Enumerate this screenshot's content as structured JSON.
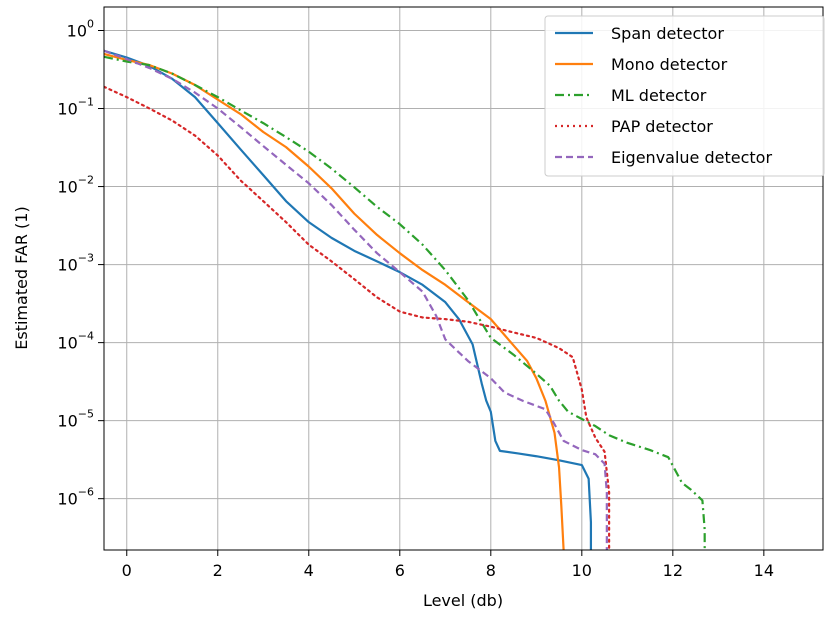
{
  "chart_data": {
    "type": "line",
    "title": "",
    "xlabel": "Level (db)",
    "ylabel": "Estimated FAR (1)",
    "xscale": "linear",
    "yscale": "log",
    "xlim": [
      -0.5,
      15.3
    ],
    "ylim": [
      2.2e-07,
      2.0
    ],
    "grid": true,
    "legend_position": "top-right",
    "x_ticks": [
      0,
      2,
      4,
      6,
      8,
      10,
      12,
      14
    ],
    "x_tick_labels": [
      "0",
      "2",
      "4",
      "6",
      "8",
      "10",
      "12",
      "14"
    ],
    "y_ticks": [
      1e-06,
      1e-05,
      0.0001,
      0.001,
      0.01,
      0.1,
      1
    ],
    "y_tick_labels": [
      {
        "base": "10",
        "exp": "−6"
      },
      {
        "base": "10",
        "exp": "−5"
      },
      {
        "base": "10",
        "exp": "−4"
      },
      {
        "base": "10",
        "exp": "−3"
      },
      {
        "base": "10",
        "exp": "−2"
      },
      {
        "base": "10",
        "exp": "−1"
      },
      {
        "base": "10",
        "exp": "0"
      }
    ],
    "series": [
      {
        "name": "Span detector",
        "color": "#1f77b4",
        "style": "solid",
        "points": [
          [
            -0.5,
            0.55
          ],
          [
            0,
            0.45
          ],
          [
            0.5,
            0.35
          ],
          [
            1,
            0.24
          ],
          [
            1.5,
            0.14
          ],
          [
            2,
            0.065
          ],
          [
            2.5,
            0.03
          ],
          [
            3,
            0.014
          ],
          [
            3.5,
            0.0065
          ],
          [
            4,
            0.0035
          ],
          [
            4.5,
            0.0022
          ],
          [
            5,
            0.0015
          ],
          [
            5.5,
            0.0011
          ],
          [
            6,
            0.0008
          ],
          [
            6.5,
            0.00055
          ],
          [
            7,
            0.00033
          ],
          [
            7.3,
            0.0002
          ],
          [
            7.6,
            9.5e-05
          ],
          [
            7.8,
            3e-05
          ],
          [
            7.9,
            1.8e-05
          ],
          [
            8.0,
            1.3e-05
          ],
          [
            8.1,
            5.5e-06
          ],
          [
            8.2,
            4.1e-06
          ],
          [
            8.6,
            3.8e-06
          ],
          [
            9,
            3.5e-06
          ],
          [
            9.5,
            3.1e-06
          ],
          [
            10,
            2.7e-06
          ],
          [
            10.15,
            1.8e-06
          ],
          [
            10.2,
            5e-07
          ],
          [
            10.2,
            2.2e-07
          ]
        ]
      },
      {
        "name": "Mono detector",
        "color": "#ff7f0e",
        "style": "solid",
        "points": [
          [
            -0.5,
            0.5
          ],
          [
            0,
            0.42
          ],
          [
            0.5,
            0.36
          ],
          [
            1,
            0.28
          ],
          [
            1.5,
            0.2
          ],
          [
            2,
            0.13
          ],
          [
            2.5,
            0.085
          ],
          [
            3,
            0.05
          ],
          [
            3.5,
            0.032
          ],
          [
            4,
            0.018
          ],
          [
            4.5,
            0.0095
          ],
          [
            5,
            0.0045
          ],
          [
            5.5,
            0.0024
          ],
          [
            6,
            0.0014
          ],
          [
            6.5,
            0.00085
          ],
          [
            7,
            0.00055
          ],
          [
            7.5,
            0.00033
          ],
          [
            8,
            0.0002
          ],
          [
            8.5,
            9.2e-05
          ],
          [
            8.8,
            5.8e-05
          ],
          [
            9,
            3.5e-05
          ],
          [
            9.2,
            1.8e-05
          ],
          [
            9.4,
            7e-06
          ],
          [
            9.5,
            2.5e-06
          ],
          [
            9.55,
            8e-07
          ],
          [
            9.6,
            2.2e-07
          ]
        ]
      },
      {
        "name": "ML detector",
        "color": "#2ca02c",
        "style": "dashdot",
        "points": [
          [
            -0.5,
            0.46
          ],
          [
            0,
            0.4
          ],
          [
            0.5,
            0.36
          ],
          [
            1,
            0.28
          ],
          [
            1.5,
            0.2
          ],
          [
            2,
            0.14
          ],
          [
            2.5,
            0.095
          ],
          [
            3,
            0.065
          ],
          [
            3.5,
            0.043
          ],
          [
            4,
            0.028
          ],
          [
            4.5,
            0.017
          ],
          [
            5,
            0.0098
          ],
          [
            5.5,
            0.0055
          ],
          [
            6,
            0.0033
          ],
          [
            6.5,
            0.0018
          ],
          [
            7,
            0.00085
          ],
          [
            7.5,
            0.00035
          ],
          [
            8,
            0.000115
          ],
          [
            8.5,
            7e-05
          ],
          [
            9,
            4e-05
          ],
          [
            9.3,
            2.8e-05
          ],
          [
            9.5,
            1.8e-05
          ],
          [
            9.7,
            1.3e-05
          ],
          [
            10,
            1.05e-05
          ],
          [
            10.3,
            8.5e-06
          ],
          [
            10.6,
            6.5e-06
          ],
          [
            11,
            5.2e-06
          ],
          [
            11.5,
            4.2e-06
          ],
          [
            11.9,
            3.4e-06
          ],
          [
            12.2,
            1.6e-06
          ],
          [
            12.4,
            1.3e-06
          ],
          [
            12.65,
            9.5e-07
          ],
          [
            12.7,
            4e-07
          ],
          [
            12.7,
            2.2e-07
          ]
        ]
      },
      {
        "name": "PAP detector",
        "color": "#d62728",
        "style": "dotted",
        "points": [
          [
            -0.5,
            0.19
          ],
          [
            0,
            0.14
          ],
          [
            0.5,
            0.1
          ],
          [
            1,
            0.07
          ],
          [
            1.5,
            0.045
          ],
          [
            2,
            0.025
          ],
          [
            2.5,
            0.012
          ],
          [
            3,
            0.0065
          ],
          [
            3.5,
            0.0035
          ],
          [
            4,
            0.0018
          ],
          [
            4.5,
            0.0011
          ],
          [
            5,
            0.00065
          ],
          [
            5.5,
            0.00038
          ],
          [
            6,
            0.00025
          ],
          [
            6.5,
            0.00021
          ],
          [
            7,
            0.0002
          ],
          [
            7.5,
            0.000185
          ],
          [
            8,
            0.00016
          ],
          [
            8.5,
            0.000135
          ],
          [
            9,
            0.000115
          ],
          [
            9.5,
            8.5e-05
          ],
          [
            9.8,
            6.5e-05
          ],
          [
            10.0,
            2.5e-05
          ],
          [
            10.1,
            1.1e-05
          ],
          [
            10.3,
            6e-06
          ],
          [
            10.5,
            4e-06
          ],
          [
            10.6,
            1.2e-06
          ],
          [
            10.6,
            2.2e-07
          ]
        ]
      },
      {
        "name": "Eigenvalue detector",
        "color": "#9467bd",
        "style": "dashed",
        "points": [
          [
            -0.5,
            0.55
          ],
          [
            0,
            0.43
          ],
          [
            0.5,
            0.33
          ],
          [
            1,
            0.24
          ],
          [
            1.5,
            0.16
          ],
          [
            2,
            0.1
          ],
          [
            2.5,
            0.058
          ],
          [
            3,
            0.033
          ],
          [
            3.5,
            0.019
          ],
          [
            4,
            0.011
          ],
          [
            4.5,
            0.0058
          ],
          [
            5,
            0.0028
          ],
          [
            5.5,
            0.0014
          ],
          [
            6,
            0.0008
          ],
          [
            6.5,
            0.00045
          ],
          [
            6.8,
            0.00022
          ],
          [
            7,
            0.00011
          ],
          [
            7.2,
            8.5e-05
          ],
          [
            7.5,
            5.8e-05
          ],
          [
            8,
            3.5e-05
          ],
          [
            8.3,
            2.3e-05
          ],
          [
            8.7,
            1.8e-05
          ],
          [
            9.2,
            1.4e-05
          ],
          [
            9.4,
            9e-06
          ],
          [
            9.6,
            5.5e-06
          ],
          [
            10,
            4.2e-06
          ],
          [
            10.3,
            3.7e-06
          ],
          [
            10.5,
            2.8e-06
          ],
          [
            10.55,
            1.2e-06
          ],
          [
            10.55,
            2.2e-07
          ]
        ]
      }
    ]
  }
}
